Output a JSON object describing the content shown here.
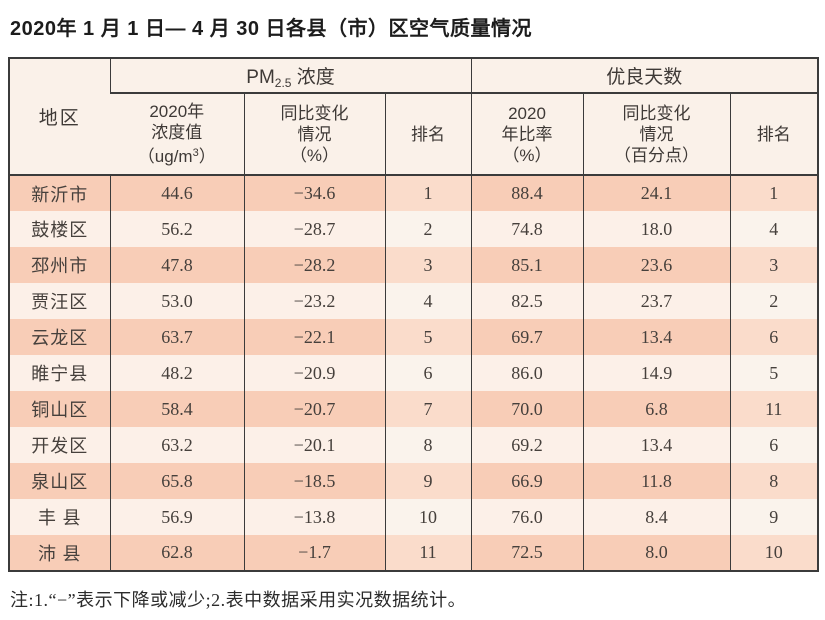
{
  "title": "2020年 1 月 1 日— 4 月 30 日各县（市）区空气质量情况",
  "note": "注:1.“−”表示下降或减少;2.表中数据采用实况数据统计。",
  "colors": {
    "stripe_peach": "#f8cdb7",
    "stripe_pale": "#fcf0e8",
    "header_bg": "#faf1e9",
    "border": "#3b3b3b"
  },
  "table": {
    "region_header": "地区",
    "groups": {
      "pm25": {
        "prefix": "PM",
        "sub": "2.5",
        "suffix": " 浓度"
      },
      "good_days": {
        "label": "优良天数"
      }
    },
    "subheaders": {
      "pm_value": {
        "l1": "2020年",
        "l2": "浓度值",
        "l3a": "（ug/m",
        "sup": "3",
        "l3b": "）"
      },
      "pm_change": {
        "l1": "同比变化",
        "l2": "情况",
        "l3": "（%）"
      },
      "pm_rank": "排名",
      "good_rate": {
        "l1": "2020",
        "l2": "年比率",
        "l3": "（%）"
      },
      "good_change": {
        "l1": "同比变化",
        "l2": "情况",
        "l3": "（百分点）"
      },
      "good_rank": "排名"
    },
    "rows": [
      [
        "新沂市",
        "44.6",
        "−34.6",
        "1",
        "88.4",
        "24.1",
        "1"
      ],
      [
        "鼓楼区",
        "56.2",
        "−28.7",
        "2",
        "74.8",
        "18.0",
        "4"
      ],
      [
        "邳州市",
        "47.8",
        "−28.2",
        "3",
        "85.1",
        "23.6",
        "3"
      ],
      [
        "贾汪区",
        "53.0",
        "−23.2",
        "4",
        "82.5",
        "23.7",
        "2"
      ],
      [
        "云龙区",
        "63.7",
        "−22.1",
        "5",
        "69.7",
        "13.4",
        "6"
      ],
      [
        "睢宁县",
        "48.2",
        "−20.9",
        "6",
        "86.0",
        "14.9",
        "5"
      ],
      [
        "铜山区",
        "58.4",
        "−20.7",
        "7",
        "70.0",
        "6.8",
        "11"
      ],
      [
        "开发区",
        "63.2",
        "−20.1",
        "8",
        "69.2",
        "13.4",
        "6"
      ],
      [
        "泉山区",
        "65.8",
        "−18.5",
        "9",
        "66.9",
        "11.8",
        "8"
      ],
      [
        "丰 县",
        "56.9",
        "−13.8",
        "10",
        "76.0",
        "8.4",
        "9"
      ],
      [
        "沛 县",
        "62.8",
        "−1.7",
        "11",
        "72.5",
        "8.0",
        "10"
      ]
    ]
  }
}
